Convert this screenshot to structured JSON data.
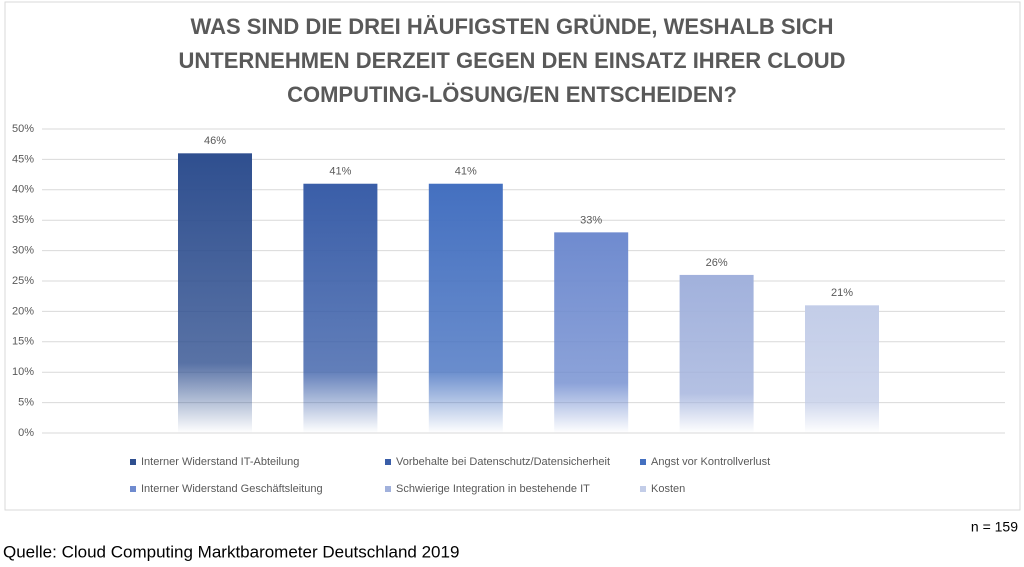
{
  "chart_data": {
    "type": "bar",
    "title": [
      "WAS SIND DIE DREI HÄUFIGSTEN GRÜNDE, WESHALB SICH",
      "UNTERNEHMEN DERZEIT GEGEN DEN EINSATZ IHRER CLOUD",
      "COMPUTING-LÖSUNG/EN ENTSCHEIDEN?"
    ],
    "series": [
      {
        "name": "Interner Widerstand IT-Abteilung",
        "color": "#2f4f8f",
        "values": [
          46
        ],
        "value_labels": [
          "46%"
        ]
      },
      {
        "name": "Vorbehalte bei Datenschutz/Datensicherheit",
        "color": "#3a5ea8",
        "values": [
          41
        ],
        "value_labels": [
          "41%"
        ]
      },
      {
        "name": "Angst vor Kontrollverlust",
        "color": "#4470c0",
        "values": [
          41
        ],
        "value_labels": [
          "41%"
        ]
      },
      {
        "name": "Interner Widerstand Geschäftsleitung",
        "color": "#6f8bcf",
        "values": [
          33
        ],
        "value_labels": [
          "33%"
        ]
      },
      {
        "name": "Schwierige Integration in bestehende IT",
        "color": "#a1b1dc",
        "values": [
          26
        ],
        "value_labels": [
          "26%"
        ]
      },
      {
        "name": "Kosten",
        "color": "#c3cde8",
        "values": [
          21
        ],
        "value_labels": [
          "21%"
        ]
      }
    ],
    "ylim": [
      0,
      50
    ],
    "yticks": [
      {
        "value": 0,
        "label": "0%"
      },
      {
        "value": 5,
        "label": "5%"
      },
      {
        "value": 10,
        "label": "10%"
      },
      {
        "value": 15,
        "label": "15%"
      },
      {
        "value": 20,
        "label": "20%"
      },
      {
        "value": 25,
        "label": "25%"
      },
      {
        "value": 30,
        "label": "30%"
      },
      {
        "value": 35,
        "label": "35%"
      },
      {
        "value": 40,
        "label": "40%"
      },
      {
        "value": 45,
        "label": "45%"
      },
      {
        "value": 50,
        "label": "50%"
      }
    ],
    "grid": true,
    "legend": "bottom",
    "note": "n = 159",
    "source": "Quelle: Cloud Computing Marktbarometer Deutschland 2019"
  }
}
